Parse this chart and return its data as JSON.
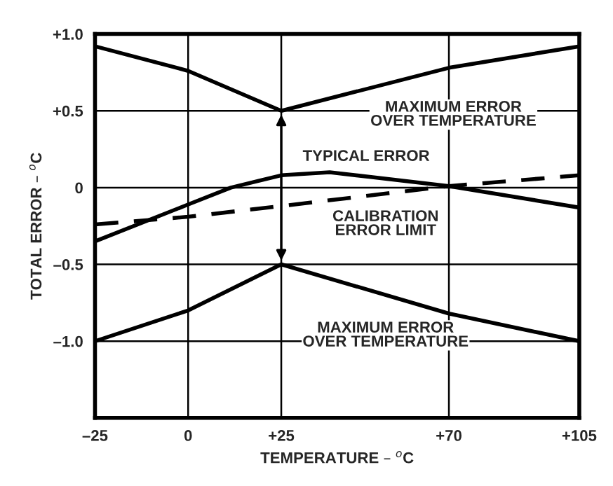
{
  "chart_data": {
    "type": "line",
    "xlabel": "TEMPERATURE – $^{o}$C",
    "ylabel": "TOTAL ERROR – $^{o}$C",
    "series": [
      {
        "color": "#000000",
        "line_style": "solid",
        "x": [
          -25,
          0,
          25,
          70,
          105
        ],
        "values": [
          0.92,
          0.76,
          0.5,
          0.78,
          0.92
        ]
      },
      {
        "color": "#000000",
        "line_style": "solid",
        "x": [
          -25,
          0,
          11.5,
          25,
          38,
          70,
          105
        ],
        "values": [
          -0.35,
          -0.11,
          0.0,
          0.08,
          0.1,
          0.01,
          -0.13
        ]
      },
      {
        "color": "#000000",
        "line_style": "dashed",
        "x": [
          -25,
          0,
          25,
          70,
          105
        ],
        "values": [
          -0.24,
          -0.19,
          -0.12,
          0.01,
          0.08
        ]
      },
      {
        "color": "#000000",
        "line_style": "solid",
        "x": [
          -25,
          0,
          25,
          70,
          105
        ],
        "values": [
          -1.0,
          -0.8,
          -0.5,
          -0.82,
          -1.0
        ]
      }
    ],
    "annotations": [
      "MAXIMUM ERROR\nOVER TEMPERATURE",
      "TYPICAL ERROR",
      "CALIBRATION\nERROR LIMIT",
      "MAXIMUM ERROR\nOVER TEMPERATURE"
    ],
    "xlim": [
      -25,
      105
    ],
    "xticks": [
      {
        "value": -25,
        "label": "–25"
      },
      0,
      {
        "value": 25,
        "label": "+25"
      },
      {
        "value": 70,
        "label": "+70"
      },
      {
        "value": 105,
        "label": "+105"
      }
    ],
    "ylim": [
      -1.5,
      1.0
    ],
    "yticks": [
      {
        "value": -1.0,
        "label": "–1.0"
      },
      {
        "value": -0.5,
        "label": "–0.5"
      },
      0,
      {
        "value": 0.5,
        "label": "+0.5"
      },
      {
        "value": 1.0,
        "label": "+1.0"
      }
    ],
    "grid": true,
    "legend": false,
    "marker": "none"
  }
}
